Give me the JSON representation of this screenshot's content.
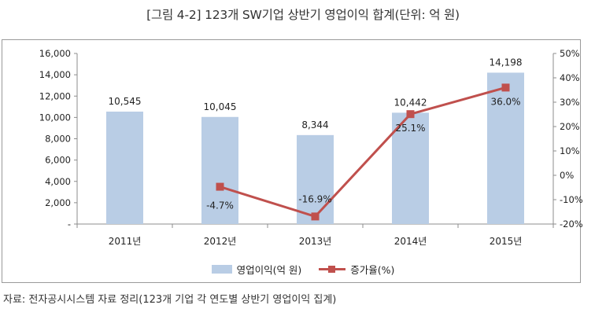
{
  "title": "[그림 4-2] 123개 SW기업 상반기 영업이익 합계(단위: 억 원)",
  "source": "자료: 전자공시시스템 자료 정리(123개 기업 각 연도별 상반기 영업이익 집계)",
  "chart_data": {
    "type": "bar",
    "categories": [
      "2011년",
      "2012년",
      "2013년",
      "2014년",
      "2015년"
    ],
    "series": [
      {
        "name": "영업이익(억 원)",
        "type": "bar",
        "axis": "left",
        "color": "#b9cde5",
        "values": [
          10545,
          10045,
          8344,
          10442,
          14198
        ],
        "labels": [
          "10,545",
          "10,045",
          "8,344",
          "10,442",
          "14,198"
        ]
      },
      {
        "name": "증가율(%)",
        "type": "line",
        "axis": "right",
        "color": "#c0504d",
        "values": [
          null,
          -4.7,
          -16.9,
          25.1,
          36.0
        ],
        "labels": [
          "",
          "-4.7%",
          "-16.9%",
          "25.1%",
          "36.0%"
        ]
      }
    ],
    "y_left": {
      "ylim": [
        0,
        16000
      ],
      "ticks": [
        0,
        2000,
        4000,
        6000,
        8000,
        10000,
        12000,
        14000,
        16000
      ],
      "tick_labels": [
        "-",
        "2,000",
        "4,000",
        "6,000",
        "8,000",
        "10,000",
        "12,000",
        "14,000",
        "16,000"
      ]
    },
    "y_right": {
      "ylim": [
        -20,
        50
      ],
      "ticks": [
        -20,
        -10,
        0,
        10,
        20,
        30,
        40,
        50
      ],
      "tick_labels": [
        "-20%",
        "-10%",
        "0%",
        "10%",
        "20%",
        "30%",
        "40%",
        "50%"
      ]
    },
    "grid": false,
    "legend_position": "bottom"
  }
}
